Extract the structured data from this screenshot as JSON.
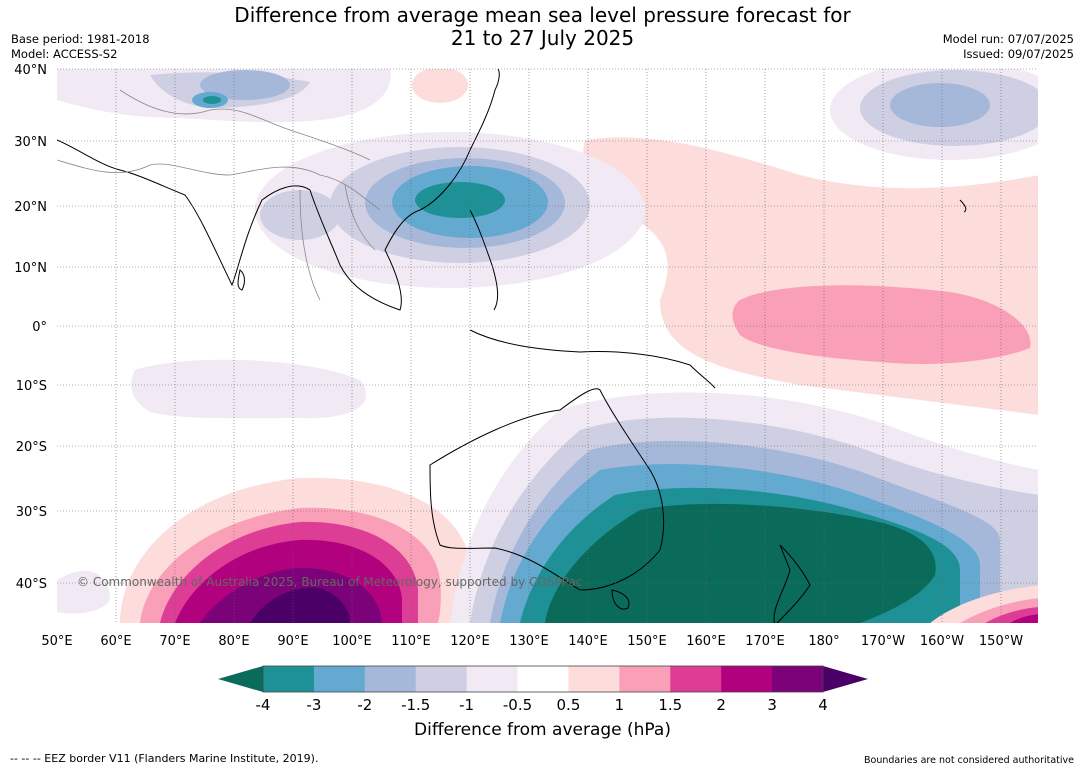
{
  "title_line1": "Difference from average mean sea level pressure forecast for",
  "title_line2": "21 to 27 July 2025",
  "base_period": "Base period: 1981-2018",
  "model": "Model: ACCESS-S2",
  "model_run": "Model run: 07/07/2025",
  "issued": "Issued: 09/07/2025",
  "lat_labels": [
    "40°N",
    "30°N",
    "20°N",
    "10°N",
    "0°",
    "10°S",
    "20°S",
    "30°S",
    "40°S"
  ],
  "lon_labels": [
    "50°E",
    "60°E",
    "70°E",
    "80°E",
    "90°E",
    "100°E",
    "110°E",
    "120°E",
    "130°E",
    "140°E",
    "150°E",
    "160°E",
    "170°E",
    "180°",
    "170°W",
    "160°W",
    "150°W"
  ],
  "copyright": "© Commonwealth of Australia 2025, Bureau of Meteorology, supported by COSPPac",
  "colorbar": {
    "ticks": [
      "-4",
      "-3",
      "-2",
      "-1.5",
      "-1",
      "-0.5",
      "0.5",
      "1",
      "1.5",
      "2",
      "3",
      "4"
    ],
    "colors": [
      "#0a6b5a",
      "#1e9196",
      "#64a9d0",
      "#a6b8d9",
      "#cfcfe4",
      "#f1e9f3",
      "#ffffff",
      "#fddcdc",
      "#f9a0b8",
      "#de3d96",
      "#b2017e",
      "#7b0279",
      "#4b0067"
    ],
    "label": "Difference from average (hPa)"
  },
  "footer_left": "--  --  -- EEZ border V11 (Flanders Marine Institute, 2019).",
  "footer_right": "Boundaries are not considered authoritative"
}
